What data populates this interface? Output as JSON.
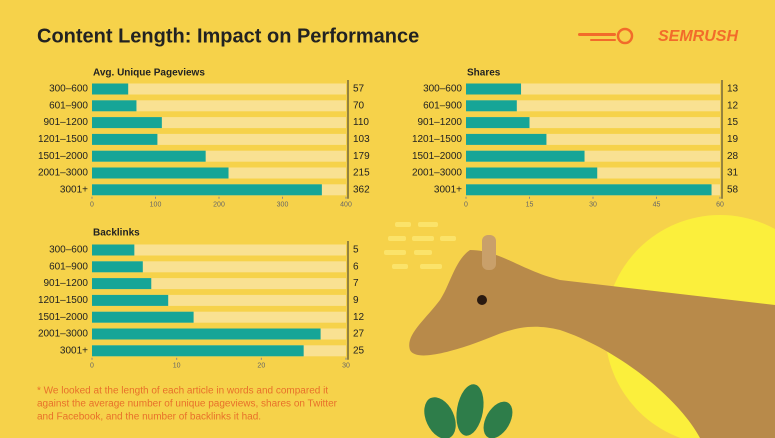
{
  "title": "Content Length: Impact on Performance",
  "brand": "SEMRUSH",
  "footnote": [
    "* We looked at the length of each article in words and compared it",
    "against the average number of unique pageviews, shares on Twitter",
    "and Facebook, and the number of backlinks it had."
  ],
  "chart_data": [
    {
      "type": "hbar",
      "title": "Avg. Unique Pageviews",
      "color": "#16a597",
      "categories": [
        "300–600",
        "601–900",
        "901–1200",
        "1201–1500",
        "1501–2000",
        "2001–3000",
        "3001+"
      ],
      "values": [
        57,
        70,
        110,
        103,
        179,
        215,
        362
      ],
      "xlim": [
        0,
        400
      ],
      "xticks": [
        0,
        100,
        200,
        300,
        400
      ]
    },
    {
      "type": "hbar",
      "title": "Shares",
      "color": "#16a597",
      "categories": [
        "300–600",
        "601–900",
        "901–1200",
        "1201–1500",
        "1501–2000",
        "2001–3000",
        "3001+"
      ],
      "values": [
        13,
        12,
        15,
        19,
        28,
        31,
        58
      ],
      "xlim": [
        0,
        60
      ],
      "xticks": [
        0,
        15,
        30,
        45,
        60
      ]
    },
    {
      "type": "hbar",
      "title": "Backlinks",
      "color": "#16a597",
      "categories": [
        "300–600",
        "601–900",
        "901–1200",
        "1201–1500",
        "1501–2000",
        "2001–3000",
        "3001+"
      ],
      "values": [
        5,
        6,
        7,
        9,
        12,
        27,
        25
      ],
      "xlim": [
        0,
        30
      ],
      "xticks": [
        0,
        10,
        20,
        30
      ]
    }
  ]
}
